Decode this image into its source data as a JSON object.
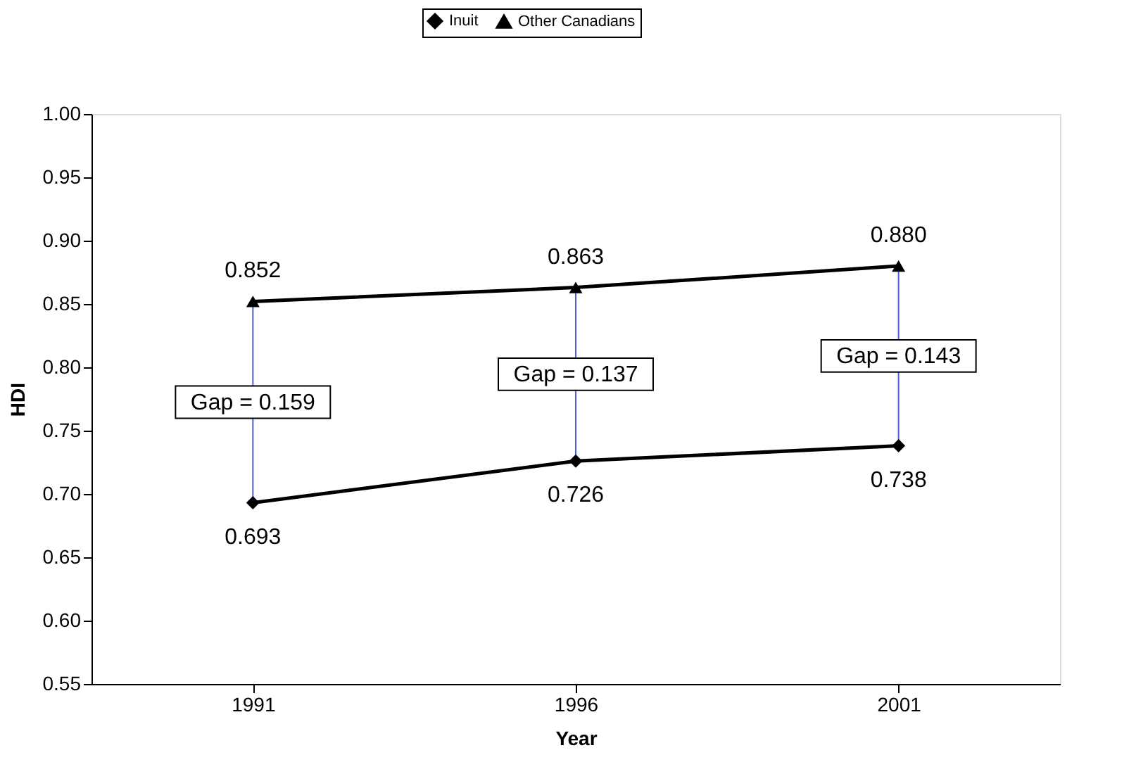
{
  "chart_data": {
    "type": "line",
    "xlabel": "Year",
    "ylabel": "HDI",
    "categories": [
      "1991",
      "1996",
      "2001"
    ],
    "series": [
      {
        "name": "Inuit",
        "color": "#000000",
        "marker": "diamond",
        "values": [
          0.693,
          0.726,
          0.738
        ],
        "value_labels": [
          "0.693",
          "0.726",
          "0.738"
        ]
      },
      {
        "name": "Other Canadians",
        "color": "#000000",
        "marker": "triangle",
        "values": [
          0.852,
          0.863,
          0.88
        ],
        "value_labels": [
          "0.852",
          "0.863",
          "0.880"
        ]
      }
    ],
    "ylim": [
      0.55,
      1.0
    ],
    "yticks": [
      0.55,
      {
        "value": 0.6,
        "label": "0.60"
      },
      0.65,
      {
        "value": 0.7,
        "label": "0.70"
      },
      0.75,
      {
        "value": 0.8,
        "label": "0.80"
      },
      0.85,
      {
        "value": 0.9,
        "label": "0.90"
      },
      0.95,
      {
        "value": 1.0,
        "label": "1.00"
      }
    ],
    "annotations": [
      "Gap = 0.159",
      "Gap = 0.137",
      "Gap = 0.143"
    ],
    "grid": false,
    "legend": "top",
    "line_style": "solid"
  }
}
